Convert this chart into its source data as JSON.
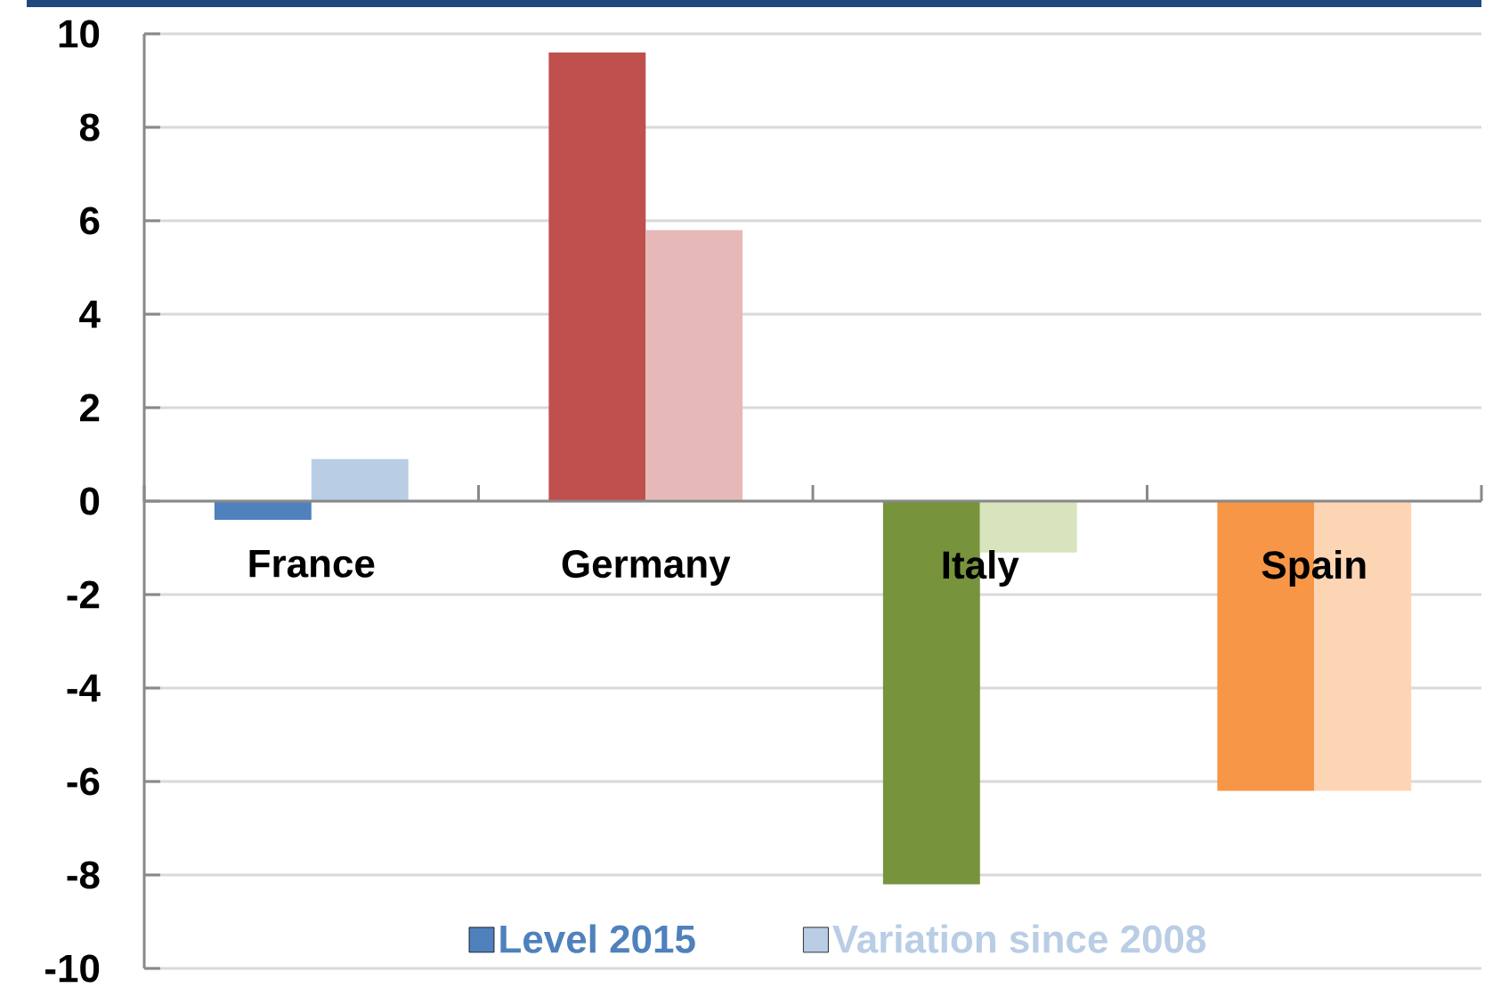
{
  "chart_data": {
    "type": "bar",
    "categories": [
      "France",
      "Germany",
      "Italy",
      "Spain"
    ],
    "series": [
      {
        "name": "Level 2015",
        "color": "#4f81bd",
        "colors": [
          "#4f81bd",
          "#c0504d",
          "#77933c",
          "#f79646"
        ],
        "values": [
          -0.4,
          9.6,
          -8.2,
          -6.2
        ]
      },
      {
        "name": "Variation since 2008",
        "color": "#b9cde5",
        "colors": [
          "#b9cde5",
          "#e6b9b8",
          "#d7e4bd",
          "#fcd5b5"
        ],
        "values": [
          0.9,
          5.8,
          -1.1,
          -6.2
        ]
      }
    ],
    "ylim": [
      -10,
      10
    ],
    "yticks": [
      -10,
      -8,
      -6,
      -4,
      -2,
      0,
      2,
      4,
      6,
      8,
      10
    ],
    "grid": "y",
    "legend": "bottom"
  }
}
